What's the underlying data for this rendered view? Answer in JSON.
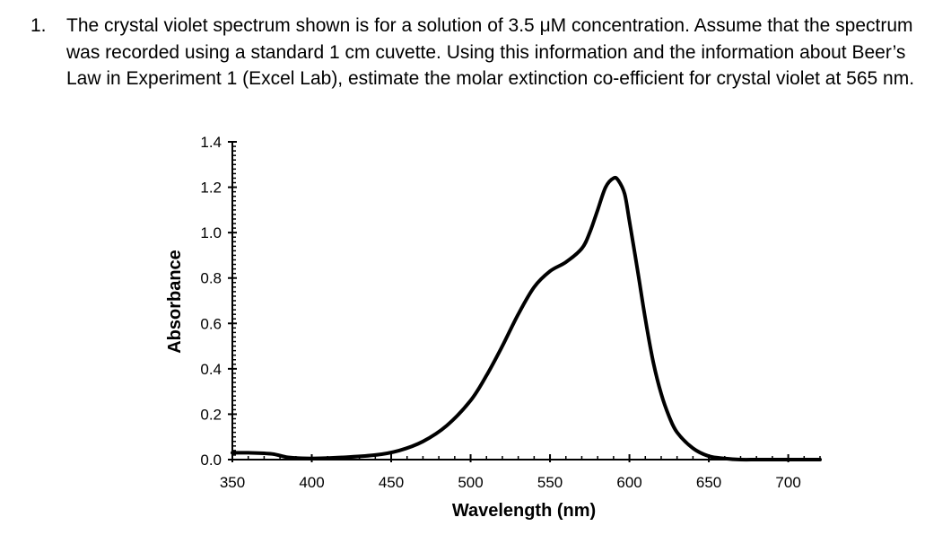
{
  "question": {
    "number": "1.",
    "text": "The crystal violet spectrum shown is for a solution of 3.5 μM concentration. Assume that the spectrum was recorded using a standard 1 cm cuvette. Using this information and the information about Beer’s Law in Experiment 1 (Excel Lab), estimate the molar extinction co-efficient for crystal violet at 565 nm."
  },
  "chart_data": {
    "type": "line",
    "title": "",
    "xlabel": "Wavelength (nm)",
    "ylabel": "Absorbance",
    "xlim": [
      350,
      720
    ],
    "ylim": [
      0,
      1.4
    ],
    "x_ticks": [
      350,
      400,
      450,
      500,
      550,
      600,
      650,
      700
    ],
    "y_ticks": [
      0.0,
      0.2,
      0.4,
      0.6,
      0.8,
      1.0,
      1.2,
      1.4
    ],
    "x_tick_labels": [
      "350",
      "400",
      "450",
      "500",
      "550",
      "600",
      "650",
      "700"
    ],
    "y_tick_labels": [
      "0.0",
      "0.2",
      "0.4",
      "0.6",
      "0.8",
      "1.0",
      "1.2",
      "1.4"
    ],
    "grid": false,
    "line_color": "#000000",
    "series": [
      {
        "x": [
          350,
          360,
          375,
          385,
          400,
          420,
          440,
          455,
          470,
          485,
          500,
          510,
          520,
          530,
          540,
          550,
          560,
          570,
          575,
          580,
          585,
          590,
          593,
          597,
          600,
          605,
          610,
          615,
          620,
          625,
          630,
          640,
          650,
          660,
          670,
          680,
          690,
          700,
          720
        ],
        "y": [
          0.03,
          0.03,
          0.025,
          0.01,
          0.005,
          0.01,
          0.02,
          0.04,
          0.08,
          0.15,
          0.26,
          0.37,
          0.5,
          0.64,
          0.76,
          0.83,
          0.87,
          0.93,
          1.0,
          1.1,
          1.2,
          1.24,
          1.23,
          1.17,
          1.05,
          0.84,
          0.62,
          0.43,
          0.29,
          0.19,
          0.12,
          0.05,
          0.015,
          0.005,
          0.0,
          0.0,
          0.0,
          0.0,
          0.0
        ]
      }
    ]
  }
}
